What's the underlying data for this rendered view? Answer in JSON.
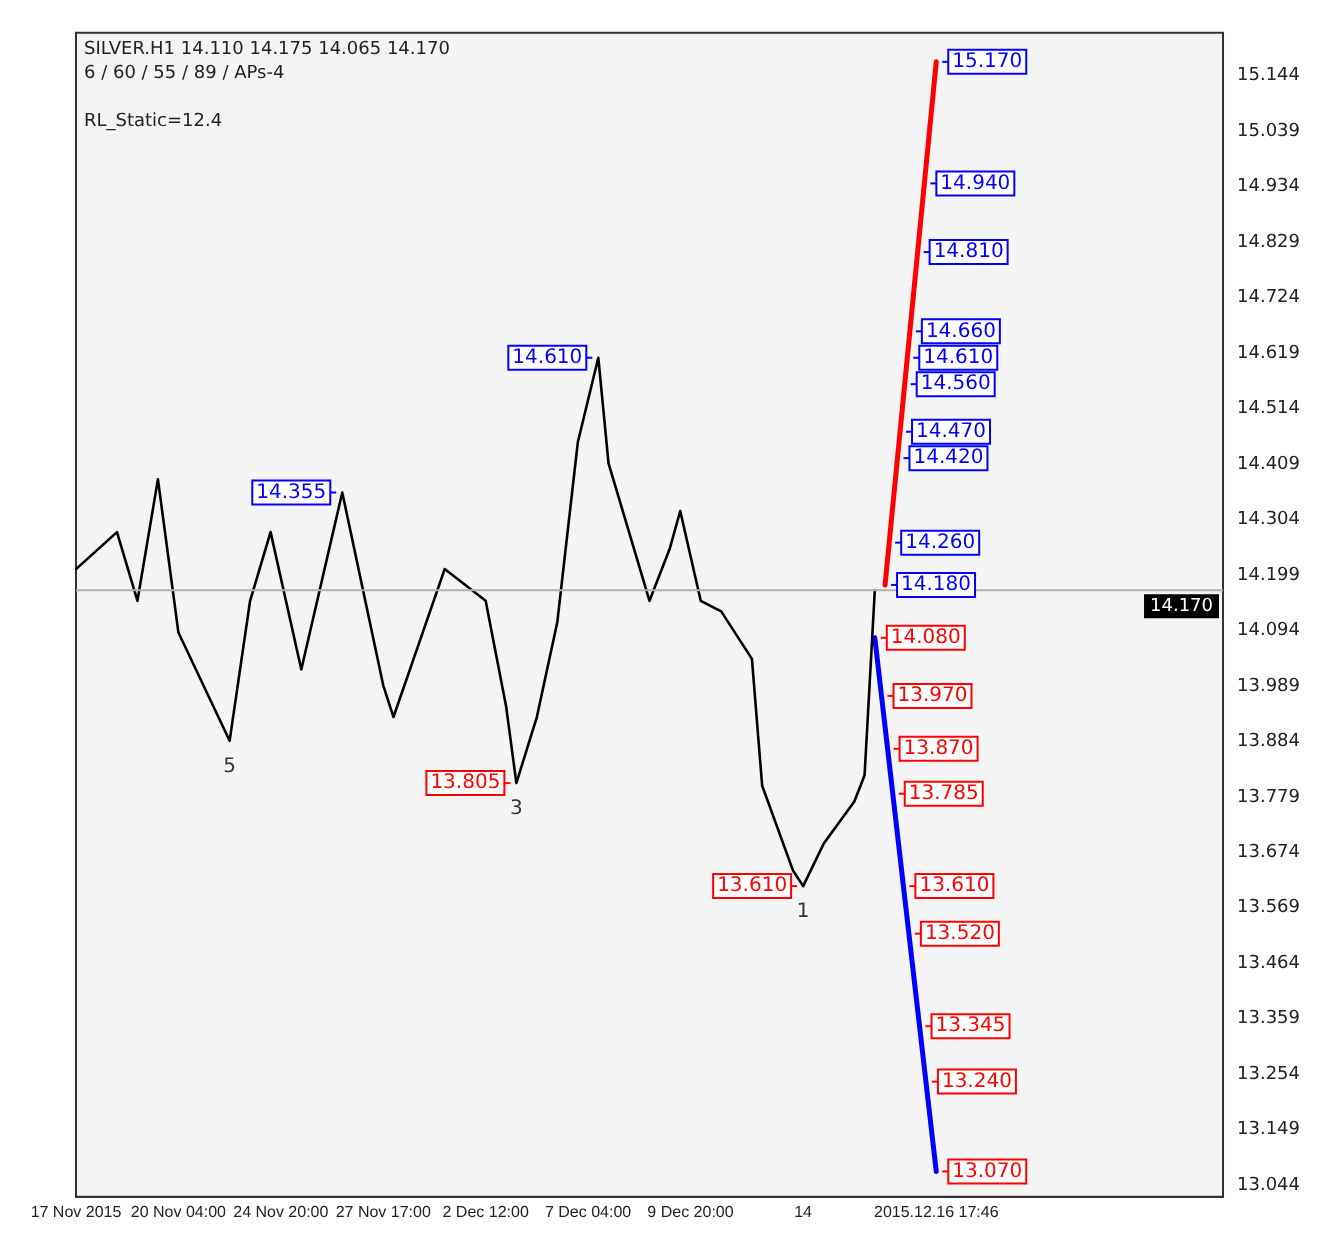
{
  "chart_data": {
    "type": "line",
    "title": "SILVER.H1 14.110 14.175 14.065 14.170",
    "subtitle": "6 / 60 / 55 / 89 / APs-4",
    "categories": [
      "17 Nov 2015",
      null,
      null,
      null,
      null,
      null,
      null,
      null,
      null,
      null,
      "20 Nov 04:00",
      null,
      null,
      null,
      null,
      null,
      null,
      null,
      null,
      null,
      "24 Nov 20:00",
      null,
      null,
      null,
      null,
      null,
      null,
      null,
      null,
      null,
      "27 Nov 17:00",
      null,
      null,
      null,
      null,
      null,
      null,
      null,
      null,
      null,
      "2 Dec 12:00",
      null,
      null,
      null,
      null,
      null,
      null,
      null,
      null,
      null,
      "7 Dec 04:00",
      null,
      null,
      null,
      null,
      null,
      null,
      null,
      null,
      null,
      "9 Dec 20:00",
      null,
      null,
      null,
      null,
      null,
      null,
      null,
      null,
      null,
      null,
      "14",
      null,
      null,
      null,
      null,
      null,
      null,
      null,
      null,
      null,
      null,
      null,
      null,
      "2015.12.16 17:46",
      null,
      null,
      null,
      null,
      null,
      null,
      null,
      null,
      null,
      null,
      null,
      null,
      null,
      null,
      null,
      null,
      null,
      null,
      null,
      null,
      null,
      null,
      null,
      null,
      null,
      null,
      null,
      null
    ],
    "series": [
      {
        "color": "#000000",
        "values": [
          14.21,
          null,
          null,
          null,
          14.28,
          null,
          14.15,
          null,
          14.38,
          null,
          14.09,
          null,
          null,
          null,
          null,
          13.885,
          null,
          14.15,
          null,
          14.28,
          null,
          null,
          14.02,
          null,
          null,
          null,
          14.355,
          null,
          null,
          null,
          13.99,
          13.93,
          null,
          null,
          null,
          null,
          14.21,
          null,
          null,
          null,
          14.15,
          null,
          13.95,
          13.805,
          null,
          13.93,
          null,
          14.11,
          null,
          14.45,
          null,
          14.61,
          14.41,
          null,
          14.28,
          null,
          14.15,
          null,
          14.25,
          14.32,
          null,
          14.15,
          null,
          14.13,
          null,
          null,
          14.04,
          13.8,
          null,
          null,
          13.64,
          13.61,
          null,
          13.69,
          null,
          null,
          13.77,
          13.82,
          14.17,
          null,
          null,
          null,
          null,
          null,
          null,
          null,
          null,
          null,
          null,
          null,
          null,
          null,
          null,
          null,
          null,
          null,
          null,
          null,
          null,
          null,
          null,
          null,
          null,
          null,
          null,
          null,
          null,
          null,
          null,
          null,
          null,
          null,
          null
        ]
      },
      {
        "color": "#ff0000",
        "values": [
          null,
          null,
          null,
          null,
          null,
          null,
          null,
          null,
          null,
          null,
          null,
          null,
          null,
          null,
          null,
          null,
          null,
          null,
          null,
          null,
          null,
          null,
          null,
          null,
          null,
          null,
          null,
          null,
          null,
          null,
          null,
          null,
          null,
          null,
          null,
          null,
          null,
          null,
          null,
          null,
          null,
          null,
          null,
          null,
          null,
          null,
          null,
          null,
          null,
          null,
          null,
          null,
          null,
          null,
          null,
          null,
          null,
          null,
          null,
          null,
          null,
          null,
          null,
          null,
          null,
          null,
          null,
          null,
          null,
          null,
          null,
          null,
          null,
          null,
          null,
          null,
          null,
          null,
          null,
          14.18,
          null,
          null,
          null,
          null,
          15.17,
          null,
          null,
          null,
          null,
          null,
          null,
          null,
          null,
          null,
          null,
          null,
          null,
          null,
          null,
          null,
          null,
          null,
          null,
          null,
          null,
          null,
          null,
          null,
          null,
          null,
          null,
          null,
          null
        ]
      },
      {
        "color": "#0000ff",
        "values": [
          null,
          null,
          null,
          null,
          null,
          null,
          null,
          null,
          null,
          null,
          null,
          null,
          null,
          null,
          null,
          null,
          null,
          null,
          null,
          null,
          null,
          null,
          null,
          null,
          null,
          null,
          null,
          null,
          null,
          null,
          null,
          null,
          null,
          null,
          null,
          null,
          null,
          null,
          null,
          null,
          null,
          null,
          null,
          null,
          null,
          null,
          null,
          null,
          null,
          null,
          null,
          null,
          null,
          null,
          null,
          null,
          null,
          null,
          null,
          null,
          null,
          null,
          null,
          null,
          null,
          null,
          null,
          null,
          null,
          null,
          null,
          null,
          null,
          null,
          null,
          null,
          null,
          null,
          14.08,
          null,
          null,
          null,
          null,
          null,
          13.07,
          null,
          null,
          null,
          null,
          null,
          null,
          null,
          null,
          null,
          null,
          null,
          null,
          null,
          null,
          null,
          null,
          null,
          null,
          null,
          null,
          null,
          null,
          null,
          null,
          null,
          null,
          null,
          null
        ]
      }
    ],
    "ylim": [
      13.022,
      15.225
    ],
    "yticks": [
      15.144,
      15.039,
      14.934,
      14.829,
      14.724,
      14.619,
      14.514,
      14.409,
      14.304,
      14.199,
      14.094,
      13.989,
      13.884,
      13.779,
      13.674,
      13.569,
      13.464,
      13.359,
      13.254,
      13.149,
      13.044
    ],
    "ref_lines": [
      {
        "axis": "y",
        "value": 14.17,
        "label": "14.170",
        "color": "#b0b0b0"
      }
    ],
    "annotations": [
      "RL_Static=12.4",
      {
        "text": "14.610",
        "y": 14.61
      },
      {
        "text": "14.355",
        "y": 14.355
      },
      {
        "text": "13.805",
        "y": 13.805
      },
      {
        "text": "13.610",
        "y": 13.61
      },
      {
        "text": "5",
        "y": 13.885
      },
      {
        "text": "3",
        "y": 13.805
      },
      {
        "text": "1",
        "y": 13.61
      },
      {
        "text": "15.170",
        "y": 15.17
      },
      {
        "text": "14.940",
        "y": 14.94
      },
      {
        "text": "14.810",
        "y": 14.81
      },
      {
        "text": "14.660",
        "y": 14.66
      },
      {
        "text": "14.610",
        "y": 14.61
      },
      {
        "text": "14.560",
        "y": 14.56
      },
      {
        "text": "14.470",
        "y": 14.47
      },
      {
        "text": "14.420",
        "y": 14.42
      },
      {
        "text": "14.260",
        "y": 14.26
      },
      {
        "text": "14.180",
        "y": 14.18
      },
      {
        "text": "14.080",
        "y": 14.08
      },
      {
        "text": "13.970",
        "y": 13.97
      },
      {
        "text": "13.870",
        "y": 13.87
      },
      {
        "text": "13.785",
        "y": 13.785
      },
      {
        "text": "13.610",
        "y": 13.61
      },
      {
        "text": "13.520",
        "y": 13.52
      },
      {
        "text": "13.345",
        "y": 13.345
      },
      {
        "text": "13.240",
        "y": 13.24
      },
      {
        "text": "13.070",
        "y": 13.07
      }
    ],
    "grid": false,
    "legend": false,
    "marker": "none",
    "line_style": "solid"
  }
}
